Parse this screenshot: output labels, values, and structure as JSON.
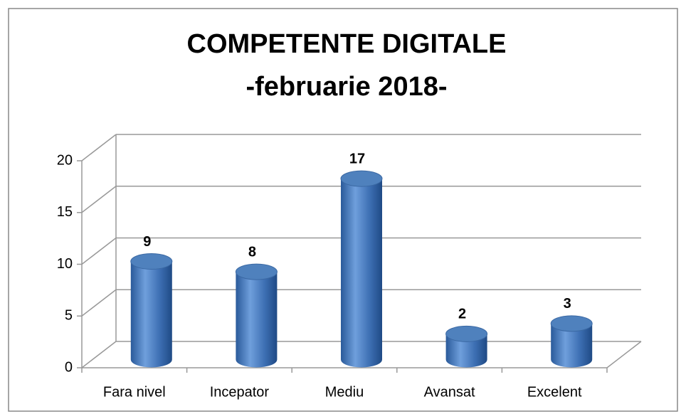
{
  "chart_data": {
    "type": "bar3d",
    "title": "COMPETENTE DIGITALE",
    "subtitle": "-februarie 2018-",
    "categories": [
      "Fara nivel",
      "Incepator",
      "Mediu",
      "Avansat",
      "Excelent"
    ],
    "values": [
      9,
      8,
      17,
      2,
      3
    ],
    "color": "#4f81bd",
    "ylim": [
      0,
      20
    ],
    "yticks": [
      0,
      5,
      10,
      15,
      20
    ],
    "grid": true
  }
}
